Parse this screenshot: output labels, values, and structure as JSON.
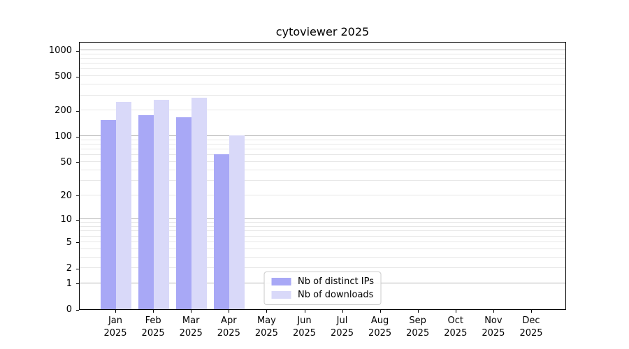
{
  "chart_data": {
    "type": "bar",
    "title": "cytoviewer 2025",
    "categories": [
      "Jan",
      "Feb",
      "Mar",
      "Apr",
      "May",
      "Jun",
      "Jul",
      "Aug",
      "Sep",
      "Oct",
      "Nov",
      "Dec"
    ],
    "category_year": "2025",
    "series": [
      {
        "name": "Nb of distinct IPs",
        "color": "#a8a8f6",
        "values": [
          154,
          176,
          167,
          61,
          null,
          null,
          null,
          null,
          null,
          null,
          null,
          null
        ]
      },
      {
        "name": "Nb of downloads",
        "color": "#d9d9f9",
        "values": [
          250,
          266,
          281,
          103,
          null,
          null,
          null,
          null,
          null,
          null,
          null,
          null
        ]
      }
    ],
    "yscale": "log1p",
    "ylim": [
      0,
      1000
    ],
    "yticks_labeled": [
      0,
      1,
      2,
      5,
      10,
      20,
      50,
      100,
      200,
      500,
      1000
    ],
    "ygrid_major": [
      1,
      10,
      100,
      1000
    ],
    "ygrid_minor": [
      2,
      3,
      4,
      5,
      6,
      7,
      8,
      9,
      20,
      30,
      40,
      50,
      60,
      70,
      80,
      90,
      200,
      300,
      400,
      500,
      600,
      700,
      800,
      900
    ],
    "grid": "both",
    "legend_position": "lower center",
    "xlabel": "",
    "ylabel": ""
  },
  "colors": {
    "grid_major": "#b3b3b3",
    "grid_minor": "#e7e7e7",
    "axis": "#000000",
    "legend_border": "#cccccc",
    "background": "#ffffff",
    "text": "#000000"
  }
}
